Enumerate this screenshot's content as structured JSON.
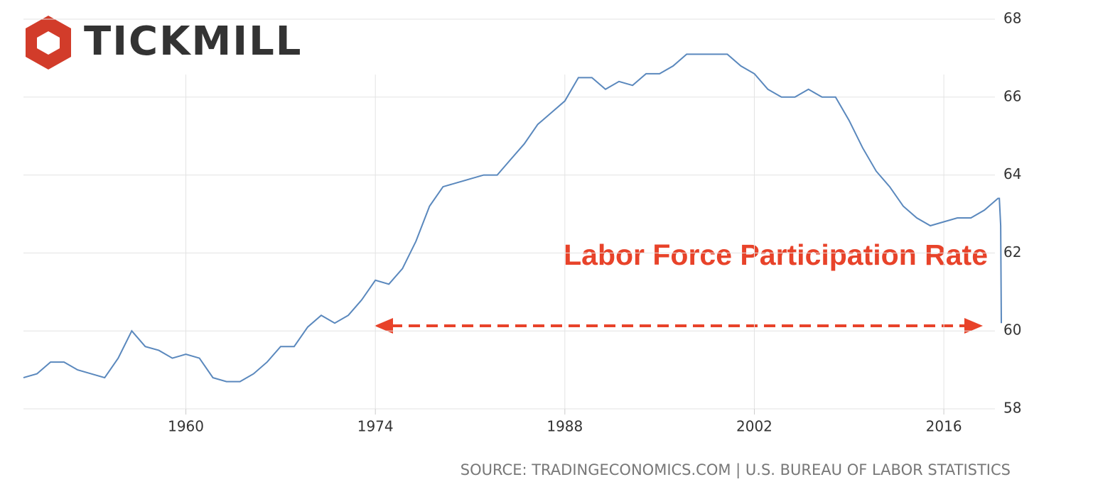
{
  "logo": "TICKMILL",
  "chart_data": {
    "type": "line",
    "annotation": "Labor Force Participation Rate",
    "source": "SOURCE: TRADINGECONOMICS.COM | U.S. BUREAU OF LABOR STATISTICS",
    "x": [
      1948,
      1949,
      1950,
      1951,
      1952,
      1953,
      1954,
      1955,
      1956,
      1957,
      1958,
      1959,
      1960,
      1961,
      1962,
      1963,
      1964,
      1965,
      1966,
      1967,
      1968,
      1969,
      1970,
      1971,
      1972,
      1973,
      1974,
      1975,
      1976,
      1977,
      1978,
      1979,
      1980,
      1981,
      1982,
      1983,
      1984,
      1985,
      1986,
      1987,
      1988,
      1989,
      1990,
      1991,
      1992,
      1993,
      1994,
      1995,
      1996,
      1997,
      1998,
      1999,
      2000,
      2001,
      2002,
      2003,
      2004,
      2005,
      2006,
      2007,
      2008,
      2009,
      2010,
      2011,
      2012,
      2013,
      2014,
      2015,
      2016,
      2017,
      2018,
      2019,
      2020,
      2020.1,
      2020.2,
      2020.25
    ],
    "series": [
      {
        "color": "#5a88bd",
        "values": [
          58.8,
          58.9,
          59.2,
          59.2,
          59.0,
          58.9,
          58.8,
          59.3,
          60.0,
          59.6,
          59.5,
          59.3,
          59.4,
          59.3,
          58.8,
          58.7,
          58.7,
          58.9,
          59.2,
          59.6,
          59.6,
          60.1,
          60.4,
          60.2,
          60.4,
          60.8,
          61.3,
          61.2,
          61.6,
          62.3,
          63.2,
          63.7,
          63.8,
          63.9,
          64.0,
          64.0,
          64.4,
          64.8,
          65.3,
          65.6,
          65.9,
          66.5,
          66.5,
          66.2,
          66.4,
          66.3,
          66.6,
          66.6,
          66.8,
          67.1,
          67.1,
          67.1,
          67.1,
          66.8,
          66.6,
          66.2,
          66.0,
          66.0,
          66.2,
          66.0,
          66.0,
          65.4,
          64.7,
          64.1,
          63.7,
          63.2,
          62.9,
          62.7,
          62.8,
          62.9,
          62.9,
          63.1,
          63.4,
          63.4,
          62.7,
          60.2
        ]
      }
    ],
    "xlim": [
      1948,
      2020.3
    ],
    "xticks": [
      1960,
      1974,
      1988,
      2002,
      2016
    ],
    "ylim": [
      58,
      68
    ],
    "yticks": [
      58,
      60,
      62,
      64,
      66,
      68
    ],
    "grid": true
  }
}
